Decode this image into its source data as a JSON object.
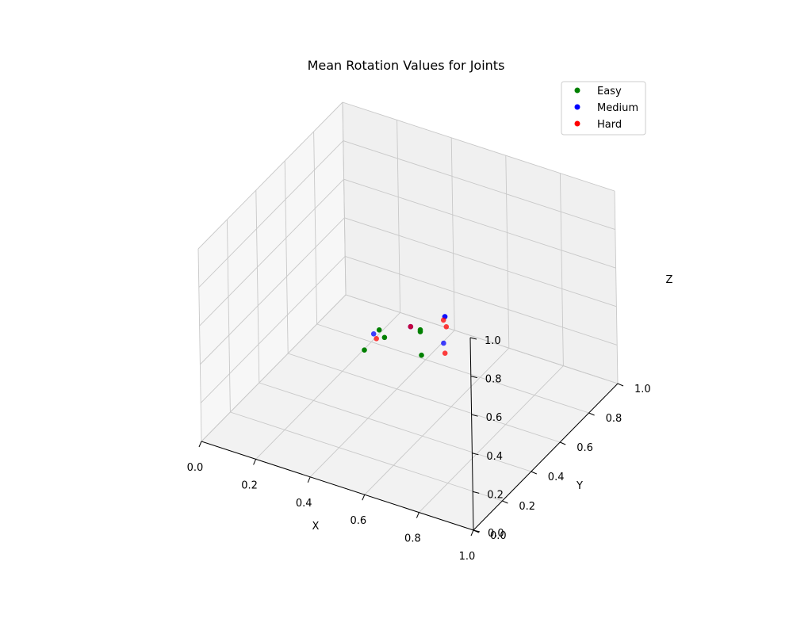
{
  "chart_data": {
    "type": "scatter",
    "projection": "3d",
    "title": "Mean Rotation Values for Joints",
    "xlabel": "X",
    "ylabel": "Y",
    "zlabel": "Z",
    "xlim": [
      0,
      1
    ],
    "ylim": [
      0,
      1
    ],
    "zlim": [
      0,
      1
    ],
    "xticks": [
      "0.0",
      "0.2",
      "0.4",
      "0.6",
      "0.8",
      "1.0"
    ],
    "yticks": [
      "0.0",
      "0.2",
      "0.4",
      "0.6",
      "0.8",
      "1.0"
    ],
    "zticks": [
      "0.0",
      "0.2",
      "0.4",
      "0.6",
      "0.8",
      "1.0"
    ],
    "grid": true,
    "legend_position": "top-right",
    "series": [
      {
        "name": "Easy",
        "color": "#008000",
        "points": [
          {
            "x": 0.38,
            "y": 0.42,
            "z": 0.33
          },
          {
            "x": 0.42,
            "y": 0.45,
            "z": 0.43
          },
          {
            "x": 0.45,
            "y": 0.43,
            "z": 0.42
          },
          {
            "x": 0.55,
            "y": 0.49,
            "z": 0.45
          },
          {
            "x": 0.55,
            "y": 0.49,
            "z": 0.46
          },
          {
            "x": 0.58,
            "y": 0.44,
            "z": 0.38
          }
        ]
      },
      {
        "name": "Medium",
        "color": "#0000ff",
        "points": [
          {
            "x": 0.41,
            "y": 0.43,
            "z": 0.42
          },
          {
            "x": 0.52,
            "y": 0.48,
            "z": 0.47
          },
          {
            "x": 0.52,
            "y": 0.48,
            "z": 0.47
          },
          {
            "x": 0.62,
            "y": 0.53,
            "z": 0.53
          },
          {
            "x": 0.62,
            "y": 0.53,
            "z": 0.53
          },
          {
            "x": 0.63,
            "y": 0.5,
            "z": 0.42
          }
        ]
      },
      {
        "name": "Hard",
        "color": "#ff0000",
        "points": [
          {
            "x": 0.42,
            "y": 0.43,
            "z": 0.4
          },
          {
            "x": 0.52,
            "y": 0.48,
            "z": 0.47
          },
          {
            "x": 0.62,
            "y": 0.52,
            "z": 0.52
          },
          {
            "x": 0.63,
            "y": 0.52,
            "z": 0.49
          },
          {
            "x": 0.64,
            "y": 0.49,
            "z": 0.38
          }
        ]
      }
    ]
  }
}
